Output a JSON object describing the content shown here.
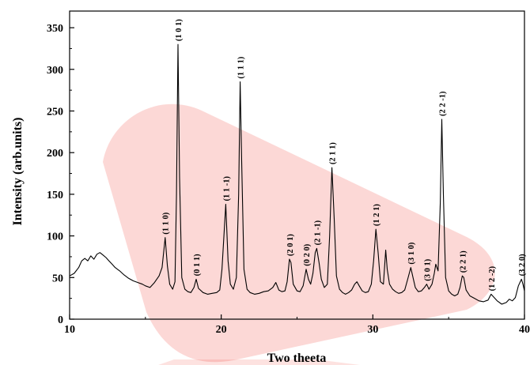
{
  "chart_data": {
    "type": "line",
    "xlabel": "Two theeta",
    "ylabel": "Intensity (arb.units)",
    "xlim": [
      10,
      40
    ],
    "ylim": [
      0,
      370
    ],
    "x_ticks": [
      10,
      20,
      30,
      40
    ],
    "y_ticks": [
      0,
      50,
      100,
      150,
      200,
      250,
      300,
      350
    ],
    "grid": false,
    "line_color": "#000000",
    "series": [
      {
        "points": [
          [
            10.0,
            52
          ],
          [
            10.3,
            55
          ],
          [
            10.6,
            62
          ],
          [
            10.8,
            70
          ],
          [
            11.0,
            73
          ],
          [
            11.2,
            70
          ],
          [
            11.4,
            76
          ],
          [
            11.6,
            72
          ],
          [
            11.8,
            78
          ],
          [
            12.0,
            80
          ],
          [
            12.2,
            77
          ],
          [
            12.4,
            74
          ],
          [
            12.6,
            70
          ],
          [
            12.8,
            66
          ],
          [
            13.0,
            62
          ],
          [
            13.3,
            58
          ],
          [
            13.6,
            53
          ],
          [
            13.9,
            49
          ],
          [
            14.2,
            46
          ],
          [
            14.5,
            44
          ],
          [
            14.8,
            42
          ],
          [
            15.0,
            40
          ],
          [
            15.3,
            38
          ],
          [
            15.6,
            44
          ],
          [
            15.9,
            52
          ],
          [
            16.1,
            62
          ],
          [
            16.3,
            98
          ],
          [
            16.45,
            64
          ],
          [
            16.6,
            42
          ],
          [
            16.8,
            36
          ],
          [
            16.95,
            45
          ],
          [
            17.05,
            150
          ],
          [
            17.15,
            330
          ],
          [
            17.25,
            170
          ],
          [
            17.4,
            50
          ],
          [
            17.6,
            36
          ],
          [
            17.8,
            33
          ],
          [
            18.0,
            32
          ],
          [
            18.2,
            38
          ],
          [
            18.35,
            48
          ],
          [
            18.5,
            37
          ],
          [
            18.8,
            32
          ],
          [
            19.1,
            30
          ],
          [
            19.4,
            31
          ],
          [
            19.7,
            32
          ],
          [
            19.9,
            35
          ],
          [
            20.05,
            60
          ],
          [
            20.2,
            107
          ],
          [
            20.3,
            138
          ],
          [
            20.45,
            70
          ],
          [
            20.6,
            42
          ],
          [
            20.8,
            36
          ],
          [
            21.0,
            50
          ],
          [
            21.15,
            150
          ],
          [
            21.25,
            285
          ],
          [
            21.35,
            190
          ],
          [
            21.5,
            60
          ],
          [
            21.7,
            36
          ],
          [
            21.9,
            32
          ],
          [
            22.2,
            30
          ],
          [
            22.5,
            31
          ],
          [
            22.8,
            33
          ],
          [
            23.1,
            34
          ],
          [
            23.4,
            38
          ],
          [
            23.6,
            44
          ],
          [
            23.8,
            35
          ],
          [
            24.0,
            33
          ],
          [
            24.2,
            34
          ],
          [
            24.35,
            45
          ],
          [
            24.5,
            72
          ],
          [
            24.6,
            68
          ],
          [
            24.75,
            42
          ],
          [
            25.0,
            34
          ],
          [
            25.2,
            33
          ],
          [
            25.4,
            40
          ],
          [
            25.6,
            60
          ],
          [
            25.75,
            48
          ],
          [
            25.9,
            42
          ],
          [
            26.05,
            55
          ],
          [
            26.2,
            80
          ],
          [
            26.3,
            85
          ],
          [
            26.45,
            68
          ],
          [
            26.6,
            48
          ],
          [
            26.8,
            38
          ],
          [
            27.0,
            42
          ],
          [
            27.15,
            100
          ],
          [
            27.3,
            182
          ],
          [
            27.45,
            120
          ],
          [
            27.6,
            52
          ],
          [
            27.8,
            36
          ],
          [
            28.0,
            32
          ],
          [
            28.2,
            30
          ],
          [
            28.4,
            32
          ],
          [
            28.6,
            35
          ],
          [
            28.8,
            42
          ],
          [
            28.95,
            45
          ],
          [
            29.1,
            40
          ],
          [
            29.3,
            34
          ],
          [
            29.5,
            32
          ],
          [
            29.7,
            33
          ],
          [
            29.9,
            42
          ],
          [
            30.05,
            70
          ],
          [
            30.2,
            108
          ],
          [
            30.35,
            80
          ],
          [
            30.5,
            45
          ],
          [
            30.7,
            42
          ],
          [
            30.85,
            83
          ],
          [
            30.95,
            60
          ],
          [
            31.1,
            42
          ],
          [
            31.3,
            36
          ],
          [
            31.5,
            33
          ],
          [
            31.7,
            31
          ],
          [
            31.9,
            32
          ],
          [
            32.1,
            35
          ],
          [
            32.3,
            48
          ],
          [
            32.5,
            62
          ],
          [
            32.65,
            50
          ],
          [
            32.8,
            38
          ],
          [
            33.0,
            33
          ],
          [
            33.2,
            34
          ],
          [
            33.4,
            38
          ],
          [
            33.55,
            42
          ],
          [
            33.7,
            36
          ],
          [
            33.9,
            42
          ],
          [
            34.05,
            55
          ],
          [
            34.15,
            66
          ],
          [
            34.3,
            58
          ],
          [
            34.45,
            140
          ],
          [
            34.55,
            240
          ],
          [
            34.65,
            150
          ],
          [
            34.8,
            50
          ],
          [
            35.0,
            34
          ],
          [
            35.2,
            30
          ],
          [
            35.4,
            28
          ],
          [
            35.6,
            30
          ],
          [
            35.75,
            38
          ],
          [
            35.9,
            52
          ],
          [
            36.0,
            50
          ],
          [
            36.15,
            35
          ],
          [
            36.4,
            28
          ],
          [
            36.7,
            25
          ],
          [
            37.0,
            22
          ],
          [
            37.3,
            21
          ],
          [
            37.6,
            23
          ],
          [
            37.8,
            30
          ],
          [
            38.0,
            26
          ],
          [
            38.2,
            22
          ],
          [
            38.5,
            18
          ],
          [
            38.8,
            20
          ],
          [
            39.0,
            24
          ],
          [
            39.2,
            22
          ],
          [
            39.4,
            26
          ],
          [
            39.6,
            40
          ],
          [
            39.8,
            48
          ],
          [
            39.9,
            42
          ],
          [
            40.0,
            34
          ]
        ]
      }
    ],
    "peak_labels": [
      {
        "text": "(1 1 0)",
        "x": 16.3,
        "y": 98
      },
      {
        "text": "(1 0 1)",
        "x": 17.15,
        "y": 330
      },
      {
        "text": "(0 1 1)",
        "x": 18.35,
        "y": 48
      },
      {
        "text": "(1 1 -1)",
        "x": 20.3,
        "y": 138
      },
      {
        "text": "(1 1 1)",
        "x": 21.25,
        "y": 285
      },
      {
        "text": "(2 0 1)",
        "x": 24.5,
        "y": 72
      },
      {
        "text": "(0 2 0)",
        "x": 25.6,
        "y": 60
      },
      {
        "text": "(2 1 -1)",
        "x": 26.3,
        "y": 85
      },
      {
        "text": "(2 1 1)",
        "x": 27.3,
        "y": 182
      },
      {
        "text": "(1 2 1)",
        "x": 30.2,
        "y": 108
      },
      {
        "text": "(3 1 0)",
        "x": 32.5,
        "y": 62
      },
      {
        "text": "(3 0 1)",
        "x": 33.55,
        "y": 42
      },
      {
        "text": "(2 2 -1)",
        "x": 34.55,
        "y": 240
      },
      {
        "text": "(2 2 1)",
        "x": 35.9,
        "y": 52
      },
      {
        "text": "(1 2 -2)",
        "x": 37.8,
        "y": 30
      },
      {
        "text": "(3 2 0)",
        "x": 39.8,
        "y": 48
      }
    ],
    "watermark_color": "#f03a30"
  }
}
